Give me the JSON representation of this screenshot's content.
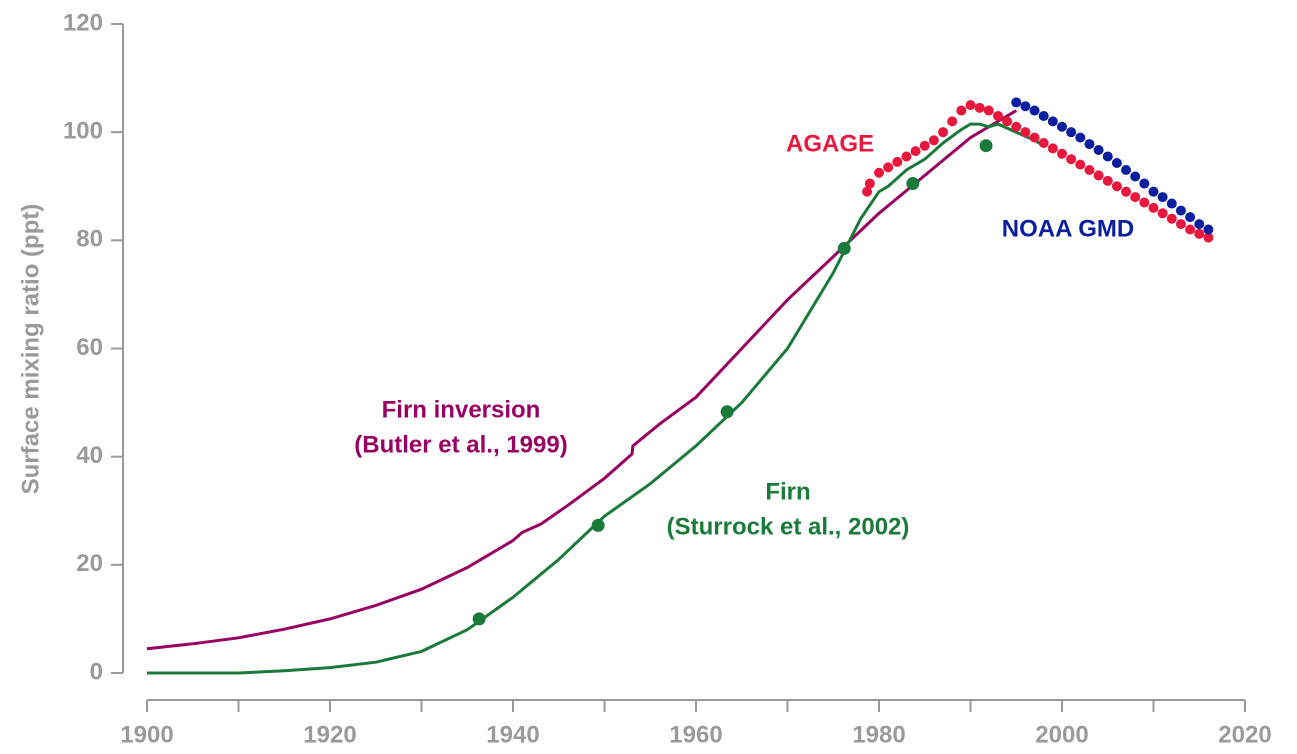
{
  "chart_data": {
    "type": "line",
    "y_label": "Surface mixing ratio (ppt)",
    "xlim": [
      1900,
      2020
    ],
    "xticks": [
      1900,
      1920,
      1940,
      1960,
      1980,
      2000,
      2020
    ],
    "xminorticks": [
      1910,
      1930,
      1950,
      1970,
      1990,
      2010
    ],
    "ylim": [
      0,
      120
    ],
    "yticks": [
      0,
      20,
      40,
      60,
      80,
      100,
      120
    ],
    "axis_color": "#9a9a9a",
    "series": [
      {
        "kind": "line",
        "color": "#990063",
        "x": [
          1900,
          1905,
          1910,
          1915,
          1920,
          1925,
          1930,
          1935,
          1940,
          1941,
          1943,
          1946,
          1950,
          1953,
          1953.1,
          1956,
          1960,
          1965,
          1970,
          1975,
          1980,
          1985,
          1990,
          1995
        ],
        "values": [
          4.5,
          5.4,
          6.5,
          8.1,
          10,
          12.5,
          15.5,
          19.5,
          24.5,
          26,
          27.5,
          31,
          36,
          40.5,
          42,
          46,
          51,
          60,
          69,
          77,
          85,
          92,
          99,
          104
        ]
      },
      {
        "kind": "line",
        "color": "#1a7a3a",
        "x": [
          1900,
          1910,
          1915,
          1920,
          1925,
          1930,
          1935,
          1940,
          1945,
          1950,
          1955,
          1960,
          1965,
          1970,
          1975,
          1978,
          1980,
          1981,
          1983,
          1985,
          1987,
          1989,
          1990,
          1991,
          1992,
          1993,
          1995,
          1997,
          1998
        ],
        "values": [
          0,
          0,
          0.4,
          1,
          2,
          4,
          8,
          14,
          21,
          29,
          35,
          42,
          50,
          60,
          74,
          84,
          89,
          90,
          93,
          95,
          98,
          100.5,
          101.5,
          101.5,
          101,
          101.5,
          100,
          98.5,
          97.5
        ]
      },
      {
        "kind": "scatter",
        "color": "#1a7a3a",
        "x": [
          1936.3,
          1949.3,
          1963.4,
          1976.2,
          1983.7,
          1991.7
        ],
        "values": [
          10,
          27.3,
          48.3,
          78.5,
          90.5,
          97.5
        ]
      },
      {
        "kind": "scatter",
        "color": "#e8173e",
        "x": [
          1978.7,
          1979,
          1980,
          1981,
          1982,
          1983,
          1984,
          1985,
          1986,
          1987,
          1988,
          1989,
          1990,
          1991,
          1992,
          1993,
          1994,
          1995,
          1996,
          1997,
          1998,
          1999,
          2000,
          2001,
          2002,
          2003,
          2004,
          2005,
          2006,
          2007,
          2008,
          2009,
          2010,
          2011,
          2012,
          2013,
          2014,
          2015,
          2016
        ],
        "values": [
          89,
          90.5,
          92.5,
          93.5,
          94.5,
          95.5,
          96.5,
          97.5,
          98.5,
          100,
          102,
          104,
          105,
          104.5,
          104,
          103,
          102,
          101,
          100,
          99,
          98,
          97,
          96,
          95,
          94,
          93,
          92,
          91,
          90,
          89,
          88,
          87,
          86,
          85,
          84,
          83,
          82,
          81.2,
          80.5
        ]
      },
      {
        "kind": "scatter",
        "color": "#0a1fa0",
        "x": [
          1995,
          1996,
          1997,
          1998,
          1999,
          2000,
          2001,
          2002,
          2003,
          2004,
          2005,
          2006,
          2007,
          2008,
          2009,
          2010,
          2011,
          2012,
          2013,
          2014,
          2015,
          2016
        ],
        "values": [
          105.5,
          104.8,
          104,
          103,
          102,
          101,
          100,
          99,
          97.8,
          96.7,
          95.5,
          94.3,
          93,
          91.8,
          90.5,
          89,
          88,
          86.8,
          85.5,
          84.3,
          83,
          82
        ]
      }
    ],
    "annotations": [
      {
        "lines": [
          "AGAGE"
        ],
        "color": "#e8173e"
      },
      {
        "lines": [
          "NOAA GMD"
        ],
        "color": "#0a1fa0"
      },
      {
        "lines": [
          "Firn inversion",
          "(Butler et al., 1999)"
        ],
        "color": "#990063"
      },
      {
        "lines": [
          "Firn",
          "(Sturrock et al., 2002)"
        ],
        "color": "#1a7a3a"
      }
    ]
  }
}
